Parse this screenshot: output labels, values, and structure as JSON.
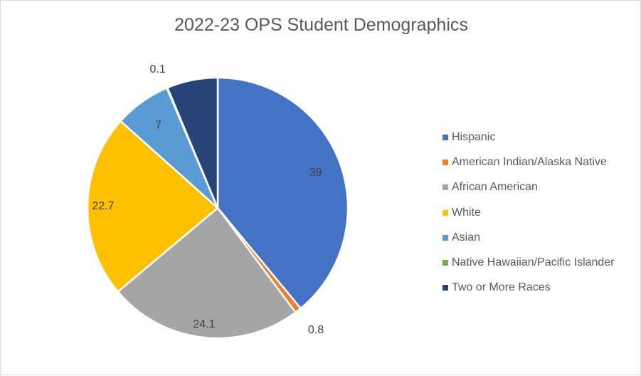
{
  "chart_data": {
    "type": "pie",
    "title": "2022-23 OPS Student Demographics",
    "categories": [
      "Hispanic",
      "American Indian/Alaska Native",
      "African American",
      "White",
      "Asian",
      "Native Hawaiian/Pacific Islander",
      "Two or More Races"
    ],
    "values": [
      39,
      0.8,
      24.1,
      22.7,
      7,
      0.1,
      6.3
    ],
    "data_labels": [
      "39",
      "0.8",
      "24.1",
      "22.7",
      "7",
      "0.1",
      "6.3"
    ],
    "colors": [
      "#4472C4",
      "#ED7D31",
      "#A5A5A5",
      "#FFC000",
      "#5B9BD5",
      "#70AD47",
      "#264478"
    ],
    "legend_position": "right"
  }
}
